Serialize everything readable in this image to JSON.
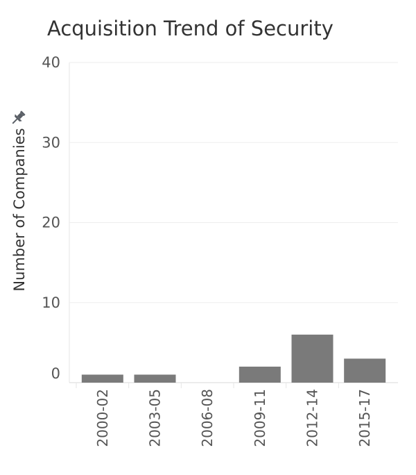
{
  "chart_data": {
    "type": "bar",
    "title": "Acquisition Trend of Security",
    "xlabel": "",
    "ylabel": "Number of Companies",
    "categories": [
      "2000-02",
      "2003-05",
      "2006-08",
      "2009-11",
      "2012-14",
      "2015-17"
    ],
    "values": [
      1,
      1,
      0,
      2,
      6,
      3
    ],
    "ylim": [
      0,
      40
    ],
    "yticks": [
      0,
      10,
      20,
      30,
      40
    ],
    "grid": true,
    "bar_color": "#7a7a7a"
  },
  "icons": {
    "pin": "pin-icon"
  }
}
